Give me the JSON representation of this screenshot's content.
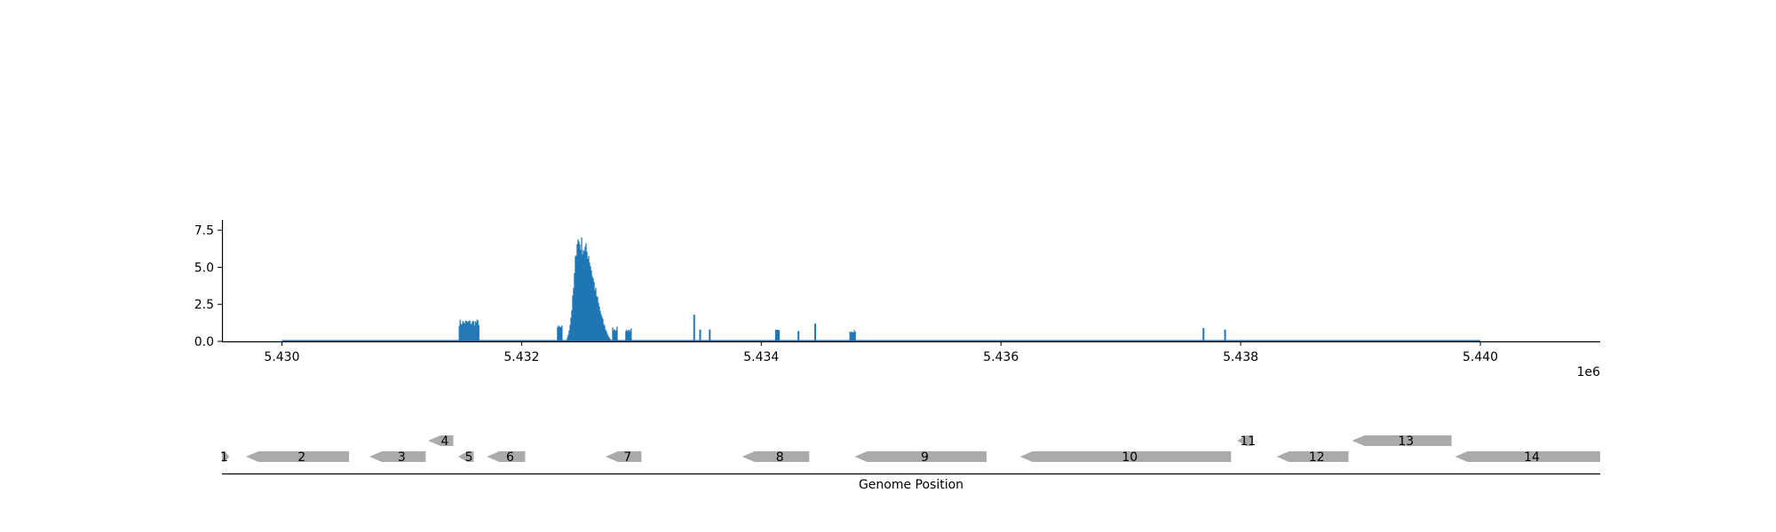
{
  "chart_data": [
    {
      "type": "line",
      "x_unit": "genome position",
      "x_offset_label": "1e6",
      "xlim": [
        5429500,
        5441000
      ],
      "ylim": [
        0,
        8.2
      ],
      "x_ticks": [
        5430000,
        5432000,
        5434000,
        5436000,
        5438000,
        5440000
      ],
      "x_tick_labels": [
        "5.430",
        "5.432",
        "5.434",
        "5.436",
        "5.438",
        "5.440"
      ],
      "y_ticks": [
        0.0,
        2.5,
        5.0,
        7.5
      ],
      "y_tick_labels": [
        "0.0",
        "2.5",
        "5.0",
        "7.5"
      ],
      "grid": false,
      "color": "#1f77b4",
      "baseline_range": [
        5430000,
        5440000
      ],
      "clusters": [
        {
          "x0": 5431480,
          "x1": 5431650,
          "peak": 1.5
        },
        {
          "x0": 5432300,
          "x1": 5432340,
          "peak": 1.1
        },
        {
          "x0": 5432360,
          "x1": 5432760,
          "peak": 7.6
        },
        {
          "x0": 5432760,
          "x1": 5432800,
          "peak": 1.0
        },
        {
          "x0": 5432870,
          "x1": 5432920,
          "peak": 0.9
        },
        {
          "x0": 5434120,
          "x1": 5434150,
          "peak": 0.8
        },
        {
          "x0": 5434740,
          "x1": 5434790,
          "peak": 0.85
        }
      ],
      "spikes": [
        {
          "x": 5433440,
          "y": 1.8
        },
        {
          "x": 5433490,
          "y": 0.8
        },
        {
          "x": 5433570,
          "y": 0.8
        },
        {
          "x": 5434310,
          "y": 0.7
        },
        {
          "x": 5434450,
          "y": 1.2
        },
        {
          "x": 5437690,
          "y": 0.9
        },
        {
          "x": 5437870,
          "y": 0.8
        }
      ]
    },
    {
      "type": "gene-map",
      "xlabel": "Genome Position",
      "xlim": [
        5429500,
        5441000
      ],
      "color": "#aaaaaa",
      "genes": [
        {
          "label": "1",
          "start": 5429500,
          "end": 5429560,
          "strand": "+",
          "row": 0
        },
        {
          "label": "2",
          "start": 5429700,
          "end": 5430560,
          "strand": "-",
          "row": 0
        },
        {
          "label": "3",
          "start": 5430730,
          "end": 5431200,
          "strand": "-",
          "row": 0
        },
        {
          "label": "4",
          "start": 5431220,
          "end": 5431430,
          "strand": "-",
          "row": 1
        },
        {
          "label": "5",
          "start": 5431470,
          "end": 5431600,
          "strand": "-",
          "row": 0
        },
        {
          "label": "6",
          "start": 5431710,
          "end": 5432030,
          "strand": "-",
          "row": 0
        },
        {
          "label": "7",
          "start": 5432700,
          "end": 5433000,
          "strand": "-",
          "row": 0
        },
        {
          "label": "8",
          "start": 5433840,
          "end": 5434400,
          "strand": "-",
          "row": 0
        },
        {
          "label": "9",
          "start": 5434780,
          "end": 5435880,
          "strand": "-",
          "row": 0
        },
        {
          "label": "10",
          "start": 5436160,
          "end": 5437920,
          "strand": "-",
          "row": 0
        },
        {
          "label": "11",
          "start": 5437970,
          "end": 5438100,
          "strand": "-",
          "row": 1
        },
        {
          "label": "12",
          "start": 5438300,
          "end": 5438900,
          "strand": "-",
          "row": 0
        },
        {
          "label": "13",
          "start": 5438930,
          "end": 5439760,
          "strand": "-",
          "row": 1
        },
        {
          "label": "14",
          "start": 5439790,
          "end": 5441000,
          "strand": "-",
          "row": 0
        }
      ]
    }
  ]
}
